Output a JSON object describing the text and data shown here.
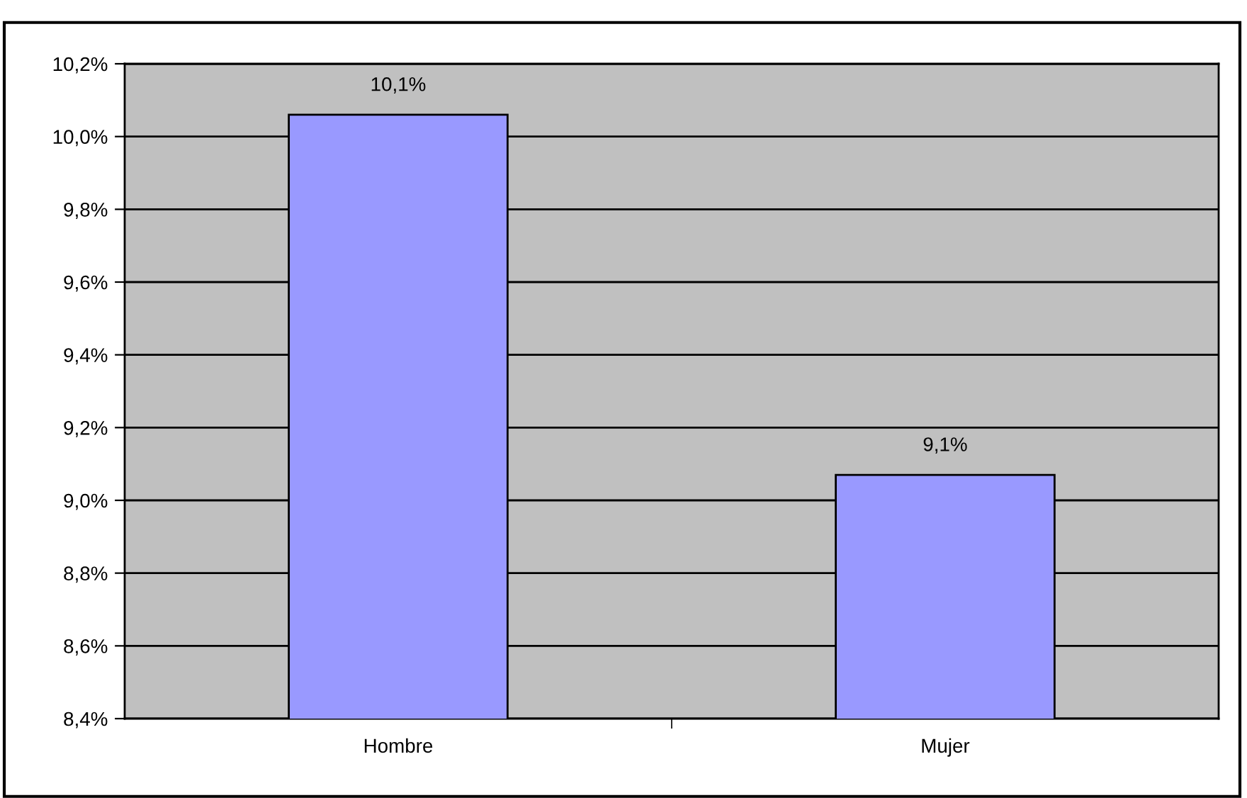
{
  "chart_data": {
    "type": "bar",
    "categories": [
      "Hombre",
      "Mujer"
    ],
    "values": [
      10.06,
      9.07
    ],
    "value_labels": [
      "10,1%",
      "9,1%"
    ],
    "color": "#9999ff",
    "ylim": [
      8.4,
      10.2
    ],
    "yticks": [
      {
        "value": 8.4,
        "label": "8,4%"
      },
      {
        "value": 8.6,
        "label": "8,6%"
      },
      {
        "value": 8.8,
        "label": "8,8%"
      },
      {
        "value": 9.0,
        "label": "9,0%"
      },
      {
        "value": 9.2,
        "label": "9,2%"
      },
      {
        "value": 9.4,
        "label": "9,4%"
      },
      {
        "value": 9.6,
        "label": "9,6%"
      },
      {
        "value": 9.8,
        "label": "9,8%"
      },
      {
        "value": 10.0,
        "label": "10,0%"
      },
      {
        "value": 10.2,
        "label": "10,2%"
      }
    ],
    "grid": "y"
  }
}
